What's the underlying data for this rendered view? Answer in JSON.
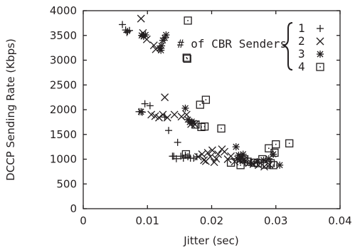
{
  "chart_data": {
    "type": "scatter",
    "xlabel": "Jitter (sec)",
    "ylabel": "DCCP Sending Rate (Kbps)",
    "xlim": [
      0,
      0.04
    ],
    "ylim": [
      0,
      4000
    ],
    "xticks": [
      0,
      0.01,
      0.02,
      0.03,
      0.04
    ],
    "xtick_labels": [
      "0",
      "0.01",
      "0.02",
      "0.03",
      "0.04"
    ],
    "yticks": [
      0,
      500,
      1000,
      1500,
      2000,
      2500,
      3000,
      3500,
      4000
    ],
    "ytick_labels": [
      "0",
      "500",
      "1000",
      "1500",
      "2000",
      "2500",
      "3000",
      "3500",
      "4000"
    ],
    "grid": false,
    "legend": {
      "title": "# of CBR Senders",
      "placement": "top-right"
    },
    "series": [
      {
        "name": "1",
        "marker": "plus",
        "points": [
          [
            0.0061,
            3720
          ],
          [
            0.0066,
            3610
          ],
          [
            0.0068,
            3560
          ],
          [
            0.0069,
            3580
          ],
          [
            0.0072,
            3600
          ],
          [
            0.0087,
            1960
          ],
          [
            0.0092,
            1950
          ],
          [
            0.0096,
            2120
          ],
          [
            0.0104,
            2080
          ],
          [
            0.0127,
            1850
          ],
          [
            0.0133,
            1580
          ],
          [
            0.0139,
            1060
          ],
          [
            0.0141,
            1060
          ],
          [
            0.0145,
            1010
          ],
          [
            0.0147,
            1340
          ],
          [
            0.0152,
            1060
          ],
          [
            0.0156,
            1020
          ],
          [
            0.0159,
            1080
          ],
          [
            0.0163,
            1050
          ],
          [
            0.0167,
            1020
          ],
          [
            0.0172,
            1020
          ],
          [
            0.0177,
            1050
          ]
        ]
      },
      {
        "name": "2",
        "marker": "cross",
        "points": [
          [
            0.009,
            3840
          ],
          [
            0.0093,
            3550
          ],
          [
            0.0099,
            3420
          ],
          [
            0.011,
            3300
          ],
          [
            0.0113,
            3220
          ],
          [
            0.0106,
            1900
          ],
          [
            0.0112,
            1870
          ],
          [
            0.0118,
            1840
          ],
          [
            0.0124,
            1900
          ],
          [
            0.0127,
            2250
          ],
          [
            0.0131,
            1840
          ],
          [
            0.0142,
            1900
          ],
          [
            0.0153,
            1860
          ],
          [
            0.0161,
            1900
          ],
          [
            0.0168,
            1710
          ],
          [
            0.0174,
            1700
          ],
          [
            0.0179,
            1050
          ],
          [
            0.0185,
            1100
          ],
          [
            0.0188,
            980
          ],
          [
            0.0191,
            960
          ],
          [
            0.0194,
            1130
          ],
          [
            0.0198,
            1050
          ],
          [
            0.0201,
            1180
          ],
          [
            0.0204,
            940
          ],
          [
            0.0207,
            1010
          ],
          [
            0.021,
            1100
          ],
          [
            0.0216,
            1200
          ],
          [
            0.022,
            1150
          ],
          [
            0.0225,
            1000
          ],
          [
            0.023,
            1060
          ],
          [
            0.0236,
            950
          ],
          [
            0.0245,
            1050
          ],
          [
            0.025,
            980
          ],
          [
            0.0258,
            920
          ],
          [
            0.0265,
            900
          ],
          [
            0.0273,
            880
          ],
          [
            0.0282,
            850
          ],
          [
            0.029,
            890
          ]
        ]
      },
      {
        "name": "3",
        "marker": "star",
        "points": [
          [
            0.009,
            1960
          ],
          [
            0.0091,
            3500
          ],
          [
            0.0094,
            3480
          ],
          [
            0.0097,
            3510
          ],
          [
            0.0119,
            3240
          ],
          [
            0.0121,
            3200
          ],
          [
            0.0122,
            3290
          ],
          [
            0.0124,
            3400
          ],
          [
            0.0127,
            3450
          ],
          [
            0.0129,
            3510
          ],
          [
            0.0159,
            2030
          ],
          [
            0.0163,
            1800
          ],
          [
            0.0166,
            1750
          ],
          [
            0.0169,
            1760
          ],
          [
            0.0172,
            1730
          ],
          [
            0.0238,
            1250
          ],
          [
            0.024,
            1010
          ],
          [
            0.0242,
            1080
          ],
          [
            0.0244,
            980
          ],
          [
            0.0247,
            1050
          ],
          [
            0.0249,
            1100
          ],
          [
            0.0252,
            960
          ],
          [
            0.0262,
            920
          ],
          [
            0.0271,
            950
          ],
          [
            0.0281,
            980
          ],
          [
            0.0289,
            1010
          ],
          [
            0.0296,
            1100
          ],
          [
            0.0306,
            880
          ]
        ]
      },
      {
        "name": "4",
        "marker": "square-dot",
        "points": [
          [
            0.0163,
            3800
          ],
          [
            0.0161,
            3050
          ],
          [
            0.0162,
            3030
          ],
          [
            0.016,
            1100
          ],
          [
            0.0175,
            1700
          ],
          [
            0.0182,
            2100
          ],
          [
            0.0184,
            1650
          ],
          [
            0.0189,
            1660
          ],
          [
            0.0191,
            2200
          ],
          [
            0.0215,
            1620
          ],
          [
            0.023,
            930
          ],
          [
            0.0245,
            880
          ],
          [
            0.0251,
            1000
          ],
          [
            0.0256,
            950
          ],
          [
            0.0266,
            930
          ],
          [
            0.0272,
            920
          ],
          [
            0.0279,
            1000
          ],
          [
            0.0286,
            890
          ],
          [
            0.0289,
            1220
          ],
          [
            0.0292,
            920
          ],
          [
            0.0296,
            880
          ],
          [
            0.0298,
            1130
          ],
          [
            0.03,
            1300
          ],
          [
            0.0321,
            1320
          ]
        ]
      }
    ]
  }
}
